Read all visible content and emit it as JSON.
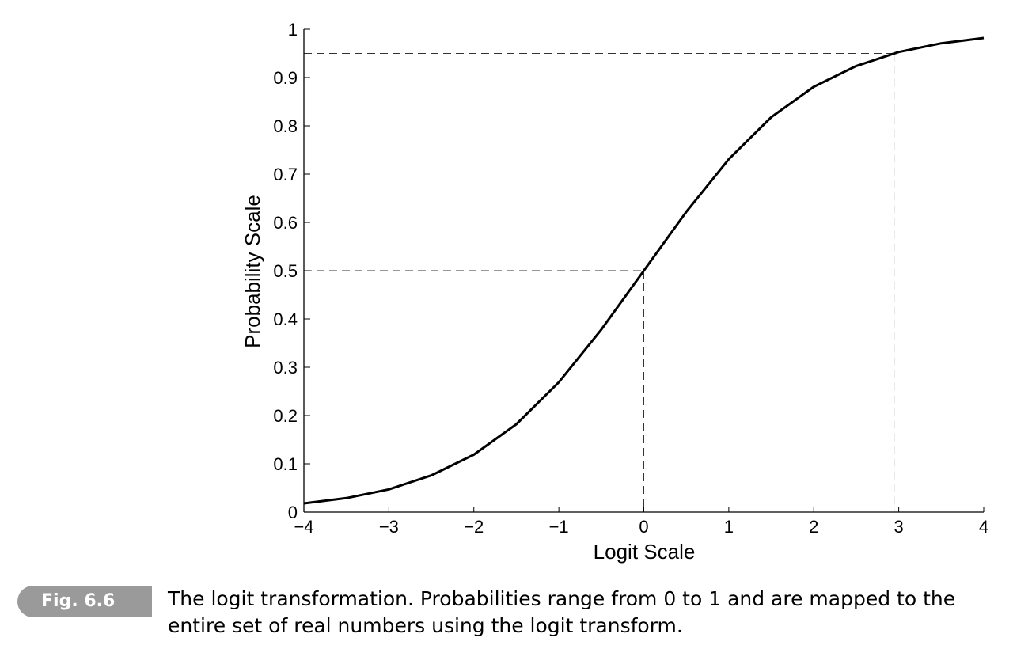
{
  "figure": {
    "label": "Fig. 6.6",
    "caption": "The logit transformation. Probabilities range from 0 to 1 and are mapped to the entire set of real numbers using the logit transform."
  },
  "chart_data": {
    "type": "line",
    "title": "",
    "xlabel": "Logit Scale",
    "ylabel": "Probability Scale",
    "xlim": [
      -4,
      4
    ],
    "ylim": [
      0,
      1
    ],
    "x_ticks": [
      -4,
      -3,
      -2,
      -1,
      0,
      1,
      2,
      3,
      4
    ],
    "x_tick_labels": [
      "−4",
      "−3",
      "−2",
      "−1",
      "0",
      "1",
      "2",
      "3",
      "4"
    ],
    "y_ticks": [
      0,
      0.1,
      0.2,
      0.3,
      0.4,
      0.5,
      0.6,
      0.7,
      0.8,
      0.9,
      1
    ],
    "y_tick_labels": [
      "0",
      "0.1",
      "0.2",
      "0.3",
      "0.4",
      "0.5",
      "0.6",
      "0.7",
      "0.8",
      "0.9",
      "1"
    ],
    "grid": false,
    "series": [
      {
        "x": [
          -4,
          -3.5,
          -3,
          -2.5,
          -2,
          -1.5,
          -1,
          -0.5,
          0,
          0.5,
          1,
          1.5,
          2,
          2.5,
          3,
          3.5,
          4
        ],
        "y": [
          0.018,
          0.029,
          0.047,
          0.076,
          0.119,
          0.182,
          0.269,
          0.378,
          0.5,
          0.622,
          0.731,
          0.818,
          0.881,
          0.924,
          0.953,
          0.971,
          0.982
        ],
        "color": "#000000"
      }
    ],
    "reference_lines": [
      {
        "x": 0,
        "y": 0.5
      },
      {
        "x": 2.944,
        "y": 0.95
      }
    ]
  }
}
